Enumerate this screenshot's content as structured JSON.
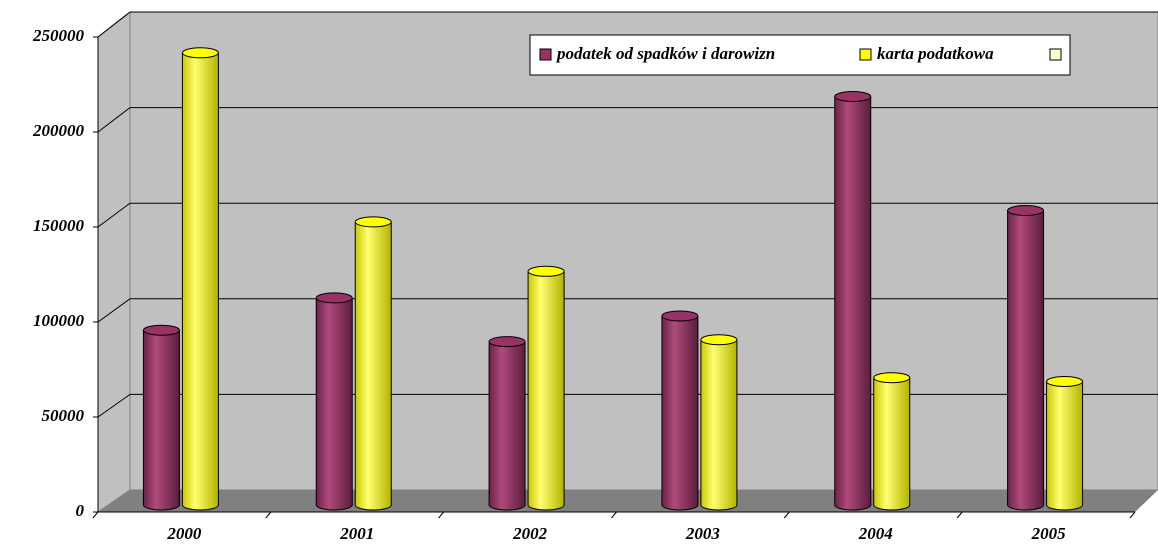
{
  "chart_data": {
    "type": "bar",
    "categories": [
      "2000",
      "2001",
      "2002",
      "2003",
      "2004",
      "2005"
    ],
    "series": [
      {
        "name": "podatek od spadków i darowizn",
        "color": "#993366",
        "values": [
          92000,
          109000,
          86000,
          99500,
          215000,
          155000
        ]
      },
      {
        "name": "karta podatkowa",
        "color": "#ffff00",
        "values": [
          238000,
          149000,
          123000,
          87000,
          67000,
          65000
        ]
      }
    ],
    "ylim": [
      0,
      250000
    ],
    "yticks": [
      0,
      50000,
      100000,
      150000,
      200000,
      250000
    ],
    "grid": true
  }
}
